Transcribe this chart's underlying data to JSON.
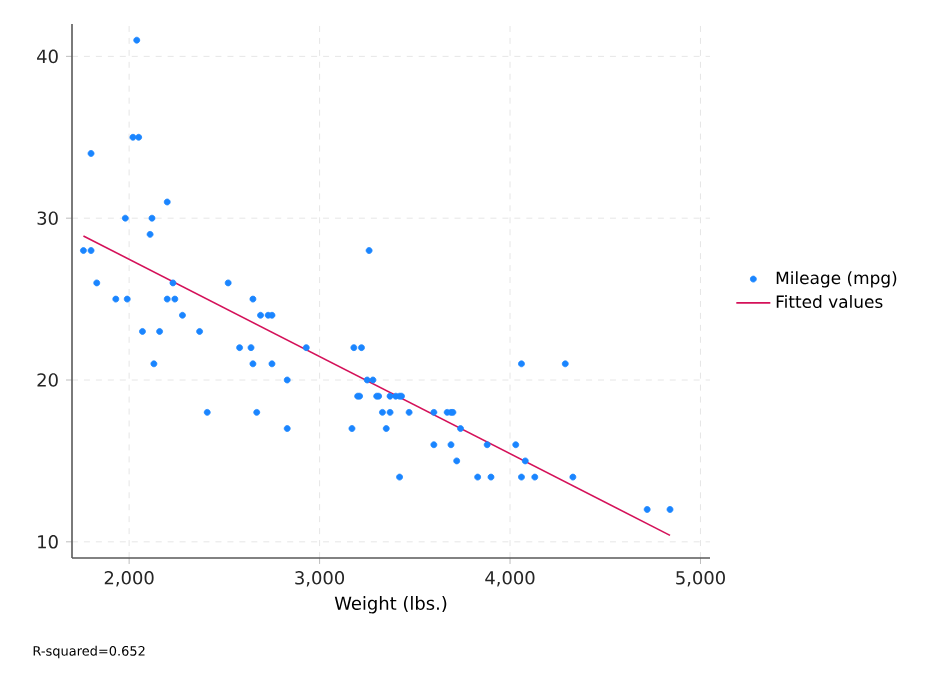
{
  "chart_data": {
    "type": "scatter",
    "xlabel": "Weight (lbs.)",
    "annotations": [
      "R-squared=0.652"
    ],
    "xlim": [
      1700,
      5050
    ],
    "ylim": [
      9,
      42
    ],
    "xticks": [
      {
        "value": 2000,
        "label": "2,000"
      },
      {
        "value": 3000,
        "label": "3,000"
      },
      {
        "value": 4000,
        "label": "4,000"
      },
      {
        "value": 5000,
        "label": "5,000"
      }
    ],
    "yticks": [
      10,
      20,
      30,
      40
    ],
    "grid": true,
    "legend": "right",
    "series": [
      {
        "name": "Mileage (mpg)",
        "marker": "circle",
        "color": "#1a85ff",
        "x": [
          2930,
          3350,
          2640,
          3250,
          4080,
          3670,
          2230,
          3280,
          3880,
          3400,
          4330,
          3900,
          4290,
          2110,
          3690,
          3180,
          3220,
          2750,
          3430,
          2120,
          3600,
          3600,
          3740,
          1800,
          2650,
          4840,
          4720,
          3830,
          2580,
          4060,
          3720,
          3370,
          4130,
          2830,
          4060,
          3310,
          3300,
          3690,
          3370,
          2730,
          4030,
          3260,
          1800,
          2200,
          2520,
          3330,
          3700,
          3470,
          3210,
          3200,
          3420,
          2690,
          2830,
          2070,
          2650,
          2370,
          2020,
          2280,
          2750,
          2130,
          2240,
          1760,
          1980,
          3420,
          1830,
          2050,
          2410,
          2200,
          2670,
          2160,
          2040,
          1930,
          1990,
          3170
        ],
        "values": [
          22,
          17,
          22,
          20,
          15,
          18,
          26,
          20,
          16,
          19,
          14,
          14,
          21,
          29,
          16,
          22,
          22,
          24,
          19,
          30,
          18,
          16,
          17,
          28,
          21,
          12,
          12,
          14,
          22,
          14,
          15,
          18,
          14,
          20,
          21,
          19,
          19,
          18,
          19,
          24,
          16,
          28,
          34,
          25,
          26,
          18,
          18,
          18,
          19,
          19,
          19,
          24,
          17,
          23,
          25,
          23,
          35,
          24,
          21,
          21,
          25,
          28,
          30,
          14,
          26,
          35,
          18,
          31,
          18,
          23,
          41,
          25,
          25,
          17
        ]
      },
      {
        "name": "Fitted values",
        "type": "line",
        "marker": "none",
        "line_style": "solid",
        "color": "#d41159",
        "x": [
          1760,
          4840
        ],
        "values": [
          28.9,
          10.4
        ]
      }
    ]
  }
}
